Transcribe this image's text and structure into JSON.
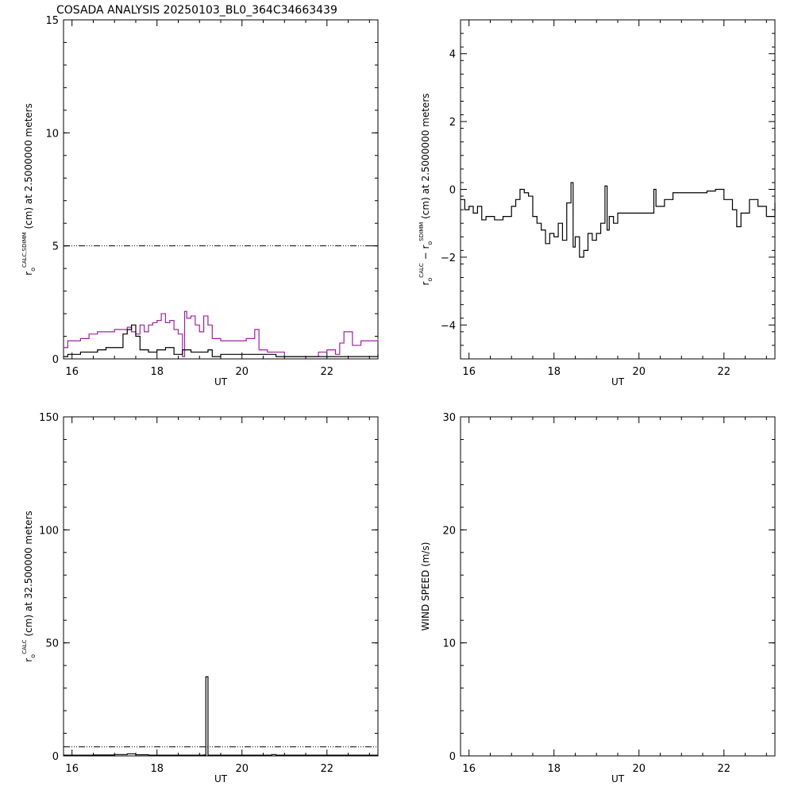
{
  "title": "COSADA ANALYSIS 20250103_BL0_364C34663439",
  "chart_data": [
    {
      "type": "line",
      "xlabel": "UT",
      "ylabel": "r_o^{CALC,SDIMM} (cm) at 2.5000000 meters",
      "ylabel_parts": {
        "base": "r",
        "sub": "o",
        "sup": "CALC,SDIMM",
        "rest": " (cm)  at  2.5000000 meters"
      },
      "xlim": [
        15.8,
        23.2
      ],
      "ylim": [
        0,
        15
      ],
      "xticks": [
        "16",
        "18",
        "20",
        "22"
      ],
      "yticks": [
        "0",
        "5",
        "10",
        "15"
      ],
      "reference_line": 5,
      "series": [
        {
          "color": "#a020a0",
          "x": [
            15.8,
            15.9,
            16.0,
            16.2,
            16.4,
            16.6,
            16.8,
            17.0,
            17.3,
            17.4,
            17.5,
            17.6,
            17.7,
            17.8,
            17.9,
            18.0,
            18.1,
            18.2,
            18.3,
            18.4,
            18.5,
            18.6,
            18.65,
            18.7,
            18.8,
            18.9,
            19.0,
            19.1,
            19.2,
            19.3,
            19.4,
            19.5,
            19.6,
            19.8,
            20.0,
            20.1,
            20.3,
            20.4,
            20.6,
            20.8,
            21.0,
            21.2,
            21.4,
            21.6,
            21.8,
            22.0,
            22.2,
            22.3,
            22.4,
            22.6,
            22.8,
            23.0,
            23.2
          ],
          "y": [
            0.5,
            0.8,
            0.8,
            0.9,
            1.1,
            1.2,
            1.2,
            1.3,
            1.4,
            1.2,
            1.1,
            1.5,
            1.2,
            1.5,
            1.6,
            1.7,
            2.0,
            1.6,
            1.7,
            1.3,
            1.1,
            0.1,
            2.1,
            1.8,
            1.9,
            1.5,
            1.2,
            1.9,
            1.5,
            0.9,
            0.9,
            0.8,
            0.8,
            0.8,
            0.8,
            0.9,
            1.3,
            0.4,
            0.3,
            0.3,
            0.1,
            0.1,
            0.1,
            0.1,
            0.3,
            0.4,
            0.2,
            0.7,
            1.2,
            0.6,
            0.8,
            0.8,
            0.9
          ]
        },
        {
          "color": "#000000",
          "x": [
            15.8,
            15.9,
            16.0,
            16.2,
            16.4,
            16.6,
            16.8,
            17.0,
            17.2,
            17.3,
            17.4,
            17.5,
            17.6,
            17.8,
            18.0,
            18.2,
            18.4,
            18.6,
            18.8,
            19.0,
            19.2,
            19.3,
            19.5,
            19.8,
            20.0,
            20.4,
            20.8,
            21.2,
            21.6,
            22.0,
            22.4,
            22.8,
            23.0,
            23.2
          ],
          "y": [
            0.1,
            0.2,
            0.2,
            0.3,
            0.3,
            0.4,
            0.5,
            0.5,
            1.1,
            1.3,
            1.5,
            1.0,
            0.4,
            0.3,
            0.4,
            0.5,
            0.2,
            0.4,
            0.3,
            0.3,
            0.4,
            0.1,
            0.2,
            0.2,
            0.2,
            0.2,
            0.1,
            0.1,
            0.1,
            0.1,
            0.1,
            0.1,
            0.1,
            0.2
          ]
        }
      ]
    },
    {
      "type": "line",
      "xlabel": "UT",
      "ylabel": "r_o^{CALC} − r_o^{SDIMM} (cm) at 2.5000000 meters",
      "ylabel_parts": {
        "base1": "r",
        "sub1": "o",
        "sup1": "CALC",
        "mid": "  −  ",
        "base2": "r",
        "sub2": "o",
        "sup2": "SDIMM",
        "rest": " (cm) at 2.5000000 meters"
      },
      "xlim": [
        15.8,
        23.2
      ],
      "ylim": [
        -5,
        5
      ],
      "xticks": [
        "16",
        "18",
        "20",
        "22"
      ],
      "yticks": [
        "−4",
        "−2",
        "0",
        "2",
        "4"
      ],
      "series": [
        {
          "color": "#000000",
          "x": [
            15.8,
            15.9,
            16.0,
            16.1,
            16.2,
            16.3,
            16.4,
            16.6,
            16.8,
            17.0,
            17.1,
            17.2,
            17.3,
            17.4,
            17.5,
            17.6,
            17.7,
            17.8,
            17.9,
            18.0,
            18.1,
            18.2,
            18.3,
            18.4,
            18.45,
            18.5,
            18.6,
            18.7,
            18.8,
            18.9,
            19.0,
            19.1,
            19.2,
            19.25,
            19.3,
            19.4,
            19.5,
            19.6,
            19.8,
            20.0,
            20.2,
            20.35,
            20.4,
            20.6,
            20.8,
            21.0,
            21.2,
            21.4,
            21.6,
            21.8,
            22.0,
            22.2,
            22.3,
            22.4,
            22.6,
            22.8,
            23.0,
            23.2
          ],
          "y": [
            -0.3,
            -0.6,
            -0.5,
            -0.7,
            -0.5,
            -0.9,
            -0.8,
            -0.9,
            -0.8,
            -0.5,
            -0.3,
            0.0,
            -0.1,
            -0.2,
            -0.8,
            -1.0,
            -1.2,
            -1.6,
            -1.3,
            -1.4,
            -1.0,
            -1.5,
            -0.4,
            0.2,
            -1.7,
            -1.4,
            -2.0,
            -1.8,
            -1.3,
            -1.5,
            -1.3,
            -1.0,
            0.1,
            -1.2,
            -0.8,
            -1.0,
            -0.7,
            -0.7,
            -0.7,
            -0.7,
            -0.7,
            0.0,
            -0.5,
            -0.3,
            -0.1,
            -0.1,
            -0.1,
            -0.1,
            -0.05,
            0.0,
            -0.3,
            -0.6,
            -1.1,
            -0.7,
            -0.3,
            -0.5,
            -0.8,
            -0.4
          ]
        }
      ]
    },
    {
      "type": "line",
      "xlabel": "UT",
      "ylabel": "r_o^{CALC} (cm) at 32.500000 meters",
      "ylabel_parts": {
        "base": "r",
        "sub": "o",
        "sup": "CALC",
        "rest": " (cm) at 32.500000 meters"
      },
      "xlim": [
        15.8,
        23.2
      ],
      "ylim": [
        0,
        150
      ],
      "xticks": [
        "16",
        "18",
        "20",
        "22"
      ],
      "yticks": [
        "0",
        "50",
        "100",
        "150"
      ],
      "reference_line": 4,
      "series": [
        {
          "color": "#000000",
          "x": [
            15.8,
            16.0,
            16.5,
            17.0,
            17.3,
            17.5,
            17.8,
            18.0,
            18.5,
            19.0,
            19.1,
            19.15,
            19.2,
            19.25,
            19.3,
            19.5,
            20.0,
            20.5,
            20.7,
            20.8,
            21.0,
            21.5,
            22.0,
            22.5,
            23.0,
            23.2
          ],
          "y": [
            0.3,
            0.3,
            0.4,
            0.6,
            0.9,
            0.5,
            0.3,
            0.3,
            0.3,
            0.3,
            0.4,
            35.0,
            0.3,
            0.3,
            0.3,
            0.3,
            0.3,
            0.3,
            0.6,
            0.3,
            0.3,
            0.3,
            0.3,
            0.3,
            0.3,
            0.3
          ]
        }
      ]
    },
    {
      "type": "line",
      "xlabel": "UT",
      "ylabel": "WIND SPEED (m/s)",
      "xlim": [
        15.8,
        23.2
      ],
      "ylim": [
        0,
        30
      ],
      "xticks": [
        "16",
        "18",
        "20",
        "22"
      ],
      "yticks": [
        "0",
        "10",
        "20",
        "30"
      ],
      "series": []
    }
  ]
}
